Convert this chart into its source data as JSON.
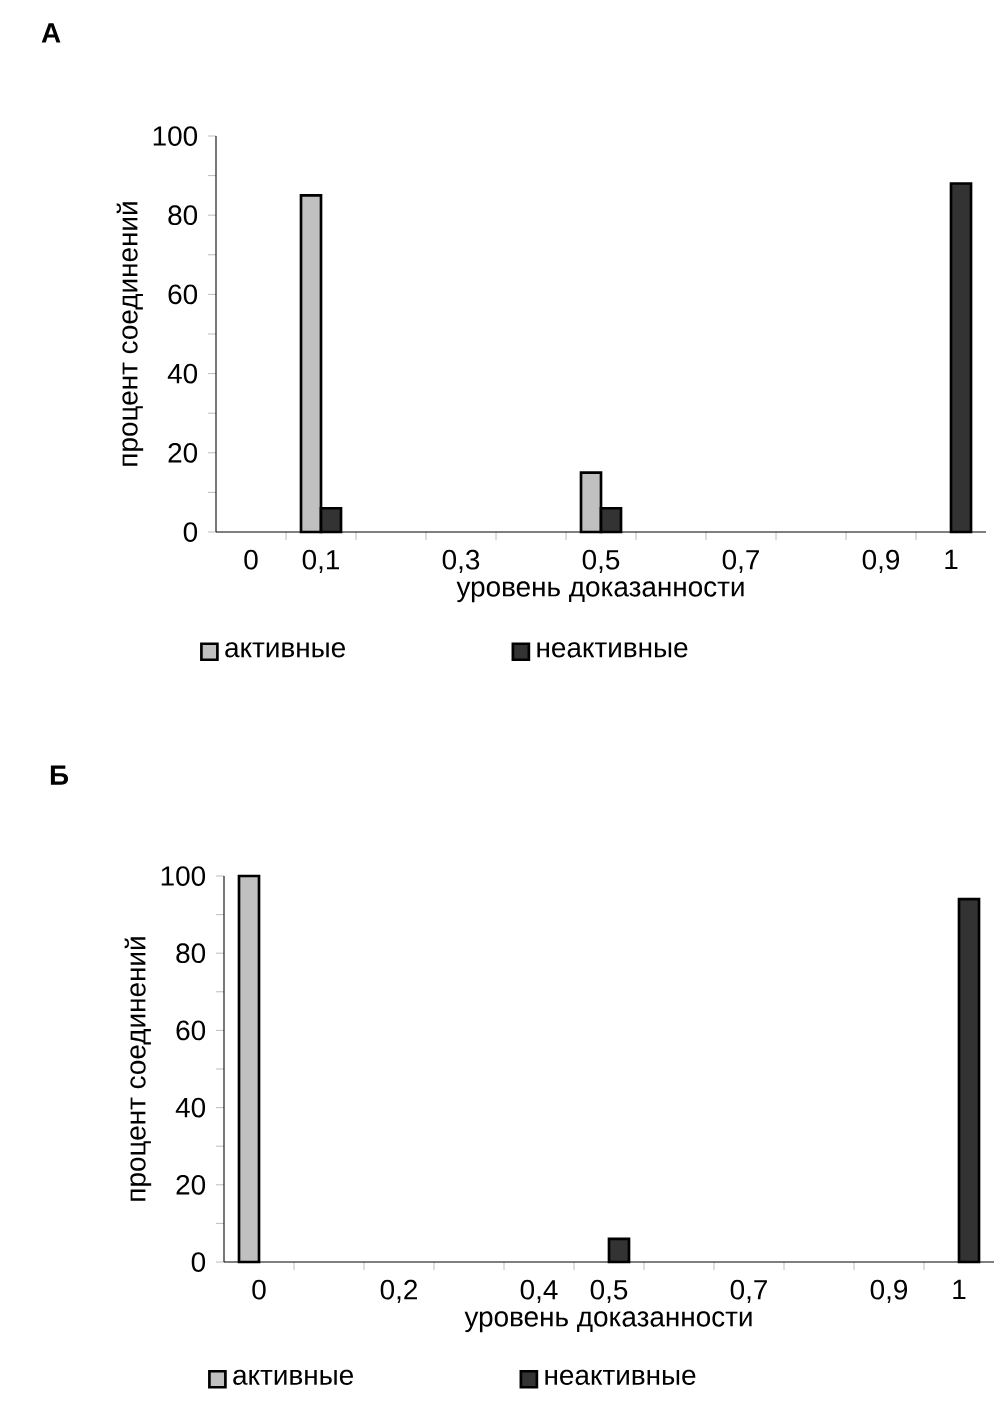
{
  "chart_data": [
    {
      "type": "bar",
      "title": "А",
      "xlabel": "уровень доказанности",
      "ylabel": "процент соединений",
      "categories": [
        "0",
        "0,1",
        null,
        "0,3",
        null,
        "0,5",
        null,
        "0,7",
        null,
        "0,9",
        "1"
      ],
      "series": [
        {
          "name": "активные",
          "color": "#c0c0c0",
          "values": [
            null,
            85,
            null,
            null,
            null,
            15,
            null,
            null,
            null,
            null,
            null
          ]
        },
        {
          "name": "неактивные",
          "color": "#333333",
          "values": [
            null,
            6,
            null,
            null,
            null,
            6,
            null,
            null,
            null,
            null,
            88
          ]
        }
      ],
      "ylim": [
        0,
        100
      ],
      "yticks": [
        0,
        20,
        40,
        60,
        80,
        100
      ],
      "legend": "bottom"
    },
    {
      "type": "bar",
      "title": "Б",
      "xlabel": "уровень доказанности",
      "ylabel": "процент соединений",
      "categories": [
        "0",
        null,
        "0,2",
        null,
        "0,4",
        "0,5",
        null,
        "0,7",
        null,
        "0,9",
        "1"
      ],
      "series": [
        {
          "name": "активные",
          "color": "#c0c0c0",
          "values": [
            100,
            null,
            null,
            null,
            null,
            null,
            null,
            null,
            null,
            null,
            null
          ]
        },
        {
          "name": "неактивные",
          "color": "#333333",
          "values": [
            null,
            null,
            null,
            null,
            null,
            6,
            null,
            null,
            null,
            null,
            94
          ]
        }
      ],
      "ylim": [
        0,
        100
      ],
      "yticks": [
        0,
        20,
        40,
        60,
        80,
        100
      ],
      "legend": "bottom"
    }
  ]
}
